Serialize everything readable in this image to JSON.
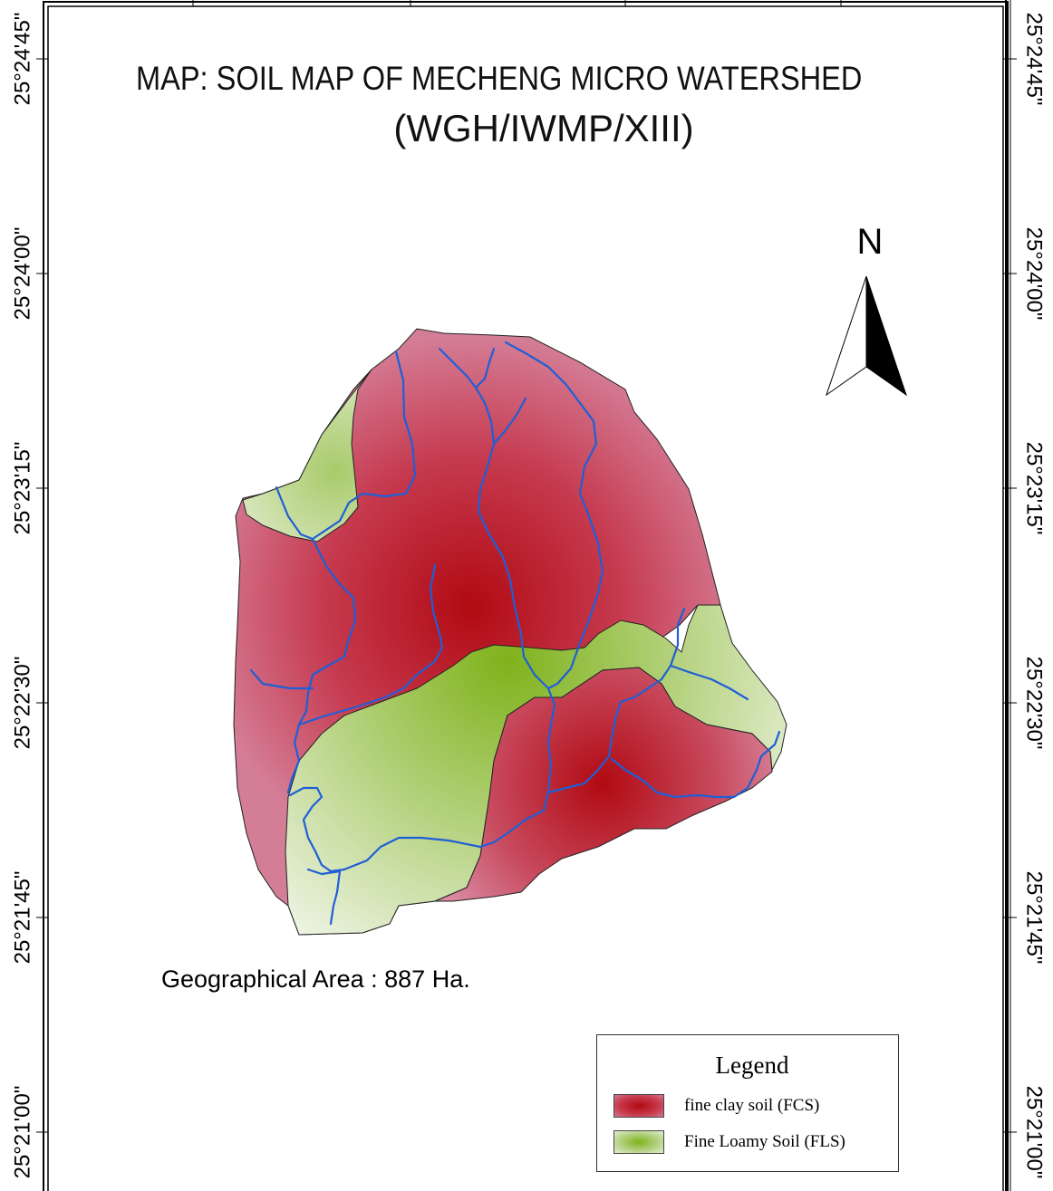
{
  "title": "MAP: SOIL MAP OF MECHENG MICRO WATERSHED",
  "subtitle": "(WGH/IWMP/XIII)",
  "north_arrow": {
    "label": "N"
  },
  "latitude_labels": [
    "25°24'45\"",
    "25°24'00\"",
    "25°23'15\"",
    "25°22'30\"",
    "25°21'45\"",
    "25°21'00\""
  ],
  "geographical_area": "Geographical Area : 887 Ha.",
  "legend": {
    "title": "Legend",
    "items": [
      {
        "label": "fine clay soil (FCS)",
        "color": "#b10a12"
      },
      {
        "label": "Fine Loamy Soil (FLS)",
        "color": "#7fb21b"
      }
    ]
  },
  "colors": {
    "clay_center": "#b10a12",
    "clay_edge": "#d27a92",
    "loam_center": "#7fb21b",
    "loam_edge": "#e4eed4",
    "streams": "#1f5fd6",
    "frame": "#000000"
  }
}
